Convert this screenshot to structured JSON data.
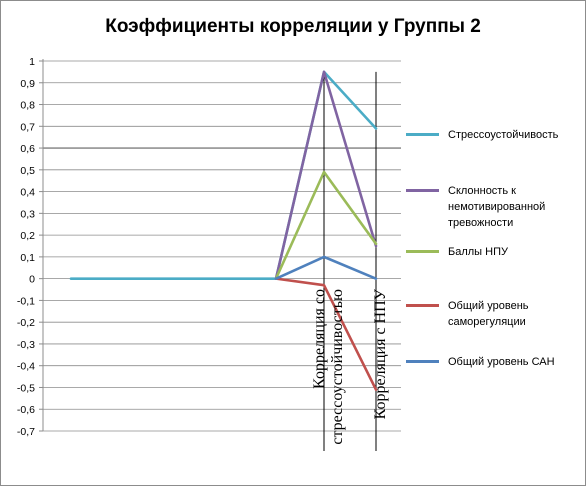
{
  "chart_data": {
    "type": "line",
    "title": "Коэффициенты корреляции у Группы 2",
    "categories": [
      "",
      "",
      "",
      "",
      "",
      "Корреляция со стрессоустойчивостью",
      "Корреляция с НПУ"
    ],
    "category_label_lines": [
      [],
      [],
      [],
      [],
      [],
      [
        "Корреляция со",
        "стрессоустойчивостью"
      ],
      [
        "Корреляция с НПУ"
      ]
    ],
    "ylim": [
      -0.7,
      1
    ],
    "y_ticks": [
      1,
      0.9,
      0.8,
      0.7,
      0.6,
      0.5,
      0.4,
      0.3,
      0.2,
      0.1,
      0,
      -0.1,
      -0.2,
      -0.3,
      -0.4,
      -0.5,
      -0.6,
      -0.7
    ],
    "y_tick_labels": [
      "1",
      "0,9",
      "0,8",
      "0,7",
      "0,6",
      "0,5",
      "0,4",
      "0,3",
      "0,2",
      "0,1",
      "0",
      "-0,1",
      "-0,2",
      "-0,3",
      "-0,4",
      "-0,5",
      "-0,6",
      "-0,7"
    ],
    "highlight_gridline_value": 0.6,
    "grid": true,
    "legend_position": "right",
    "series": [
      {
        "name": "Стрессоустойчивость",
        "color": "#4bacc6",
        "values": [
          0,
          0,
          0,
          0,
          0,
          0.95,
          0.69
        ]
      },
      {
        "name": "Склонность к немотивированной тревожности",
        "color": "#8064a2",
        "values": [
          null,
          null,
          null,
          null,
          0,
          0.95,
          0.15
        ]
      },
      {
        "name": "Баллы НПУ",
        "color": "#9bbb59",
        "values": [
          null,
          null,
          null,
          null,
          0,
          0.49,
          0.16
        ]
      },
      {
        "name": "Общий уровень саморегуляции",
        "color": "#c0504d",
        "values": [
          null,
          null,
          null,
          null,
          0,
          -0.03,
          -0.51
        ]
      },
      {
        "name": "Общий уровень  САН",
        "color": "#4f81bd",
        "values": [
          null,
          null,
          null,
          null,
          0,
          0.1,
          0
        ]
      }
    ]
  }
}
